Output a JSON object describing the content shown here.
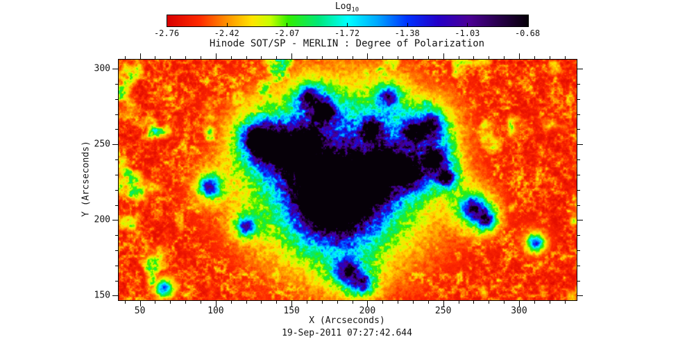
{
  "title": "Hinode SOT/SP - MERLIN : Degree of Polarization",
  "colorbar": {
    "label_main": "Log",
    "label_sub": "10",
    "tick_labels": [
      "-2.76",
      "-2.42",
      "-2.07",
      "-1.72",
      "-1.38",
      "-1.03",
      "-0.68"
    ]
  },
  "axes": {
    "xlabel": "X (Arcseconds)",
    "ylabel": "Y (Arcseconds)",
    "x_tick_labels": [
      "50",
      "100",
      "150",
      "200",
      "250",
      "300"
    ],
    "y_tick_labels": [
      "150",
      "200",
      "250",
      "300"
    ]
  },
  "footer": {
    "timestamp": "19-Sep-2011 07:27:42.644"
  },
  "chart_data": {
    "type": "heatmap",
    "title": "Hinode SOT/SP - MERLIN : Degree of Polarization",
    "xlabel": "X (Arcseconds)",
    "ylabel": "Y (Arcseconds)",
    "timestamp": "19-Sep-2011 07:27:42.644",
    "value_label": "Log10 Degree of Polarization",
    "value_range": [
      -2.76,
      -0.68
    ],
    "colorbar_ticks": [
      -2.76,
      -2.42,
      -2.07,
      -1.72,
      -1.38,
      -1.03,
      -0.68
    ],
    "xlim": [
      36,
      338
    ],
    "ylim": [
      147,
      306
    ],
    "x_major_ticks": [
      50,
      100,
      150,
      200,
      250,
      300
    ],
    "y_major_ticks": [
      150,
      200,
      250,
      300
    ],
    "minor_tick_step": 10,
    "grid": false,
    "legend": "colorbar-top",
    "colormap_stops": [
      [
        0.0,
        "#d80000"
      ],
      [
        0.09,
        "#ff2a00"
      ],
      [
        0.165,
        "#ff9100"
      ],
      [
        0.235,
        "#ffe400"
      ],
      [
        0.285,
        "#c8ff00"
      ],
      [
        0.335,
        "#33ee00"
      ],
      [
        0.42,
        "#00e87a"
      ],
      [
        0.5,
        "#00ffff"
      ],
      [
        0.58,
        "#00aaff"
      ],
      [
        0.665,
        "#0033ff"
      ],
      [
        0.75,
        "#2400c8"
      ],
      [
        0.835,
        "#4b0096"
      ],
      [
        0.92,
        "#270049"
      ],
      [
        1.0,
        "#060008"
      ]
    ],
    "scene": "Quiet-Sun background of red/orange speckled granulation (log10 p ~ -2.7). A sunspot with black/purple umbra near (178,214) arcsec surrounded by a blue penumbra, with dark-blue plage patches arcing to the north-west and north-east, embedded in a green/cyan enhanced network halo.",
    "features": [
      {
        "x": 178,
        "y": 214,
        "r": 11,
        "amp": 2.2,
        "label": "umbra-core"
      },
      {
        "x": 171,
        "y": 220,
        "r": 7,
        "amp": 1.9,
        "label": "umbra-ext"
      },
      {
        "x": 178,
        "y": 215,
        "r": 23,
        "amp": 1.25,
        "label": "penumbra"
      },
      {
        "x": 186,
        "y": 224,
        "r": 15,
        "amp": 1.1,
        "label": "penumbra-ne"
      },
      {
        "x": 137,
        "y": 249,
        "r": 11,
        "amp": 1.55,
        "label": "plage-nw"
      },
      {
        "x": 150,
        "y": 243,
        "r": 8,
        "amp": 1.45,
        "label": "plage-nw2"
      },
      {
        "x": 127,
        "y": 254,
        "r": 6,
        "amp": 1.5,
        "label": "plage-nw3"
      },
      {
        "x": 161,
        "y": 253,
        "r": 6,
        "amp": 1.25,
        "label": "plage-n1"
      },
      {
        "x": 171,
        "y": 272,
        "r": 7,
        "amp": 1.35,
        "label": "plage-top1"
      },
      {
        "x": 161,
        "y": 281,
        "r": 5,
        "amp": 1.2,
        "label": "plage-top2"
      },
      {
        "x": 212,
        "y": 237,
        "r": 9,
        "amp": 1.45,
        "label": "plage-ne1"
      },
      {
        "x": 228,
        "y": 231,
        "r": 7,
        "amp": 1.5,
        "label": "plage-ne2"
      },
      {
        "x": 244,
        "y": 240,
        "r": 7,
        "amp": 1.35,
        "label": "plage-ne3"
      },
      {
        "x": 252,
        "y": 228,
        "r": 5,
        "amp": 1.25,
        "label": "plage-e1"
      },
      {
        "x": 205,
        "y": 223,
        "r": 7,
        "amp": 1.3,
        "label": "plage-inner-e"
      },
      {
        "x": 203,
        "y": 260,
        "r": 6,
        "amp": 1.2,
        "label": "plage-n2"
      },
      {
        "x": 242,
        "y": 262,
        "r": 8,
        "amp": 1.1,
        "label": "plage-ne-arc"
      },
      {
        "x": 214,
        "y": 281,
        "r": 6,
        "amp": 0.95,
        "label": "plage-top3"
      },
      {
        "x": 270,
        "y": 208,
        "r": 7,
        "amp": 1.15,
        "label": "plage-e2"
      },
      {
        "x": 278,
        "y": 200,
        "r": 5,
        "amp": 1.05,
        "label": "plage-e3"
      },
      {
        "x": 96,
        "y": 222,
        "r": 6,
        "amp": 1.0,
        "label": "network-w"
      },
      {
        "x": 120,
        "y": 196,
        "r": 5,
        "amp": 0.95,
        "label": "network-sw"
      },
      {
        "x": 187,
        "y": 166,
        "r": 7,
        "amp": 1.05,
        "label": "network-s1"
      },
      {
        "x": 197,
        "y": 158,
        "r": 5,
        "amp": 0.95,
        "label": "network-s2"
      },
      {
        "x": 311,
        "y": 185,
        "r": 5,
        "amp": 0.95,
        "label": "network-e"
      },
      {
        "x": 230,
        "y": 258,
        "r": 6,
        "amp": 1.05,
        "label": "plage-ne4"
      },
      {
        "x": 66,
        "y": 155,
        "r": 5,
        "amp": 0.9,
        "label": "network-sw2"
      },
      {
        "x": 185,
        "y": 235,
        "r": 60,
        "amp": 0.5,
        "label": "plage-envelope"
      }
    ],
    "noise": {
      "granulation_freq": 0.5,
      "meso_freq": 0.13,
      "network_freq": 0.05,
      "base_amp": 0.82,
      "base_pow": 2.1,
      "network_amp": 1.35
    }
  }
}
